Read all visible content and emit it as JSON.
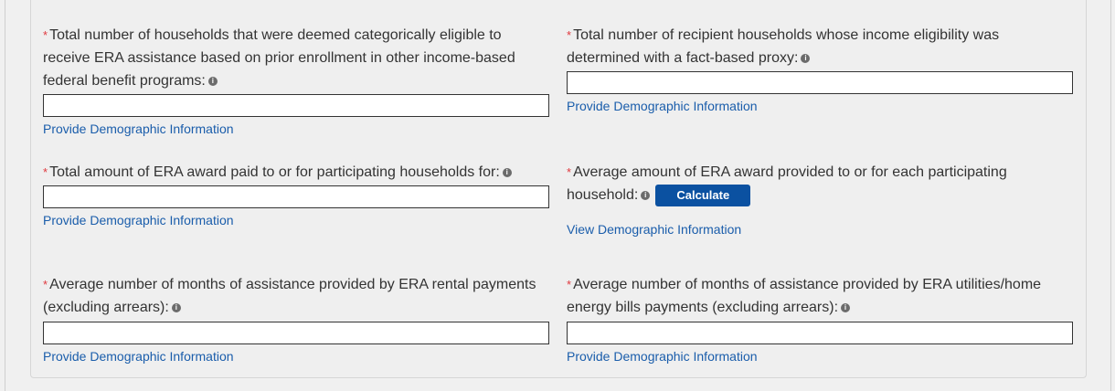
{
  "colors": {
    "required": "#e0383e",
    "link": "#1a5dab",
    "button": "#0b51a1"
  },
  "fields": [
    {
      "label": "Total number of households that were deemed categorically eligible to receive ERA assistance based on prior enrollment in other income-based federal benefit programs:",
      "value": "",
      "link": "Provide Demographic Information"
    },
    {
      "label": "Total number of recipient households whose income eligibility was determined with a fact-based proxy:",
      "value": "",
      "link": "Provide Demographic Information"
    },
    {
      "label": "Total amount of ERA award paid to or for participating households for:",
      "value": "",
      "link": "Provide Demographic Information"
    },
    {
      "label": "Average amount of ERA award provided to or for each participating household:",
      "button": "Calculate",
      "link": "View Demographic Information"
    },
    {
      "label": "Average number of months of assistance provided by ERA rental payments (excluding arrears):",
      "value": "",
      "link": "Provide Demographic Information"
    },
    {
      "label": "Average number of months of assistance provided by ERA utilities/home energy bills payments (excluding arrears):",
      "value": "",
      "link": "Provide Demographic Information"
    }
  ],
  "required_mark": "*",
  "info_icon": "info-circle"
}
